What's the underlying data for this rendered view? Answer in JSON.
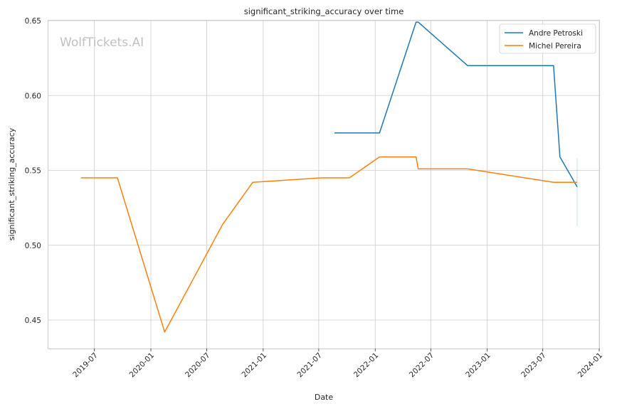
{
  "chart_data": {
    "type": "line",
    "title": "significant_striking_accuracy over time",
    "xlabel": "Date",
    "ylabel": "significant_striking_accuracy",
    "watermark": "WolfTickets.AI",
    "x_ticks": [
      "2019-07",
      "2020-01",
      "2020-07",
      "2021-01",
      "2021-07",
      "2022-01",
      "2022-07",
      "2023-01",
      "2023-07",
      "2024-01"
    ],
    "y_ticks": [
      "0.45",
      "0.50",
      "0.55",
      "0.60",
      "0.65"
    ],
    "xlim": [
      "2019-02-01",
      "2024-01-01"
    ],
    "ylim": [
      0.431,
      0.65
    ],
    "grid": true,
    "legend_position": "top-right",
    "series": [
      {
        "name": "Andre Petroski",
        "color": "#1f77b4",
        "points": [
          [
            "2021-08-21",
            0.575
          ],
          [
            "2022-01-15",
            0.575
          ],
          [
            "2022-05-14",
            0.649
          ],
          [
            "2022-05-21",
            0.649
          ],
          [
            "2022-10-29",
            0.62
          ],
          [
            "2023-08-05",
            0.62
          ],
          [
            "2023-08-26",
            0.559
          ],
          [
            "2023-10-21",
            0.539
          ]
        ]
      },
      {
        "name": "Michel Pereira",
        "color": "#ff7f0e",
        "points": [
          [
            "2019-05-18",
            0.545
          ],
          [
            "2019-09-14",
            0.545
          ],
          [
            "2020-02-15",
            0.442
          ],
          [
            "2020-08-22",
            0.514
          ],
          [
            "2020-11-28",
            0.542
          ],
          [
            "2021-07-10",
            0.545
          ],
          [
            "2021-10-09",
            0.545
          ],
          [
            "2022-01-15",
            0.559
          ],
          [
            "2022-05-14",
            0.559
          ],
          [
            "2022-05-21",
            0.551
          ],
          [
            "2022-10-29",
            0.551
          ],
          [
            "2023-08-05",
            0.542
          ],
          [
            "2023-10-21",
            0.542
          ]
        ]
      }
    ]
  }
}
